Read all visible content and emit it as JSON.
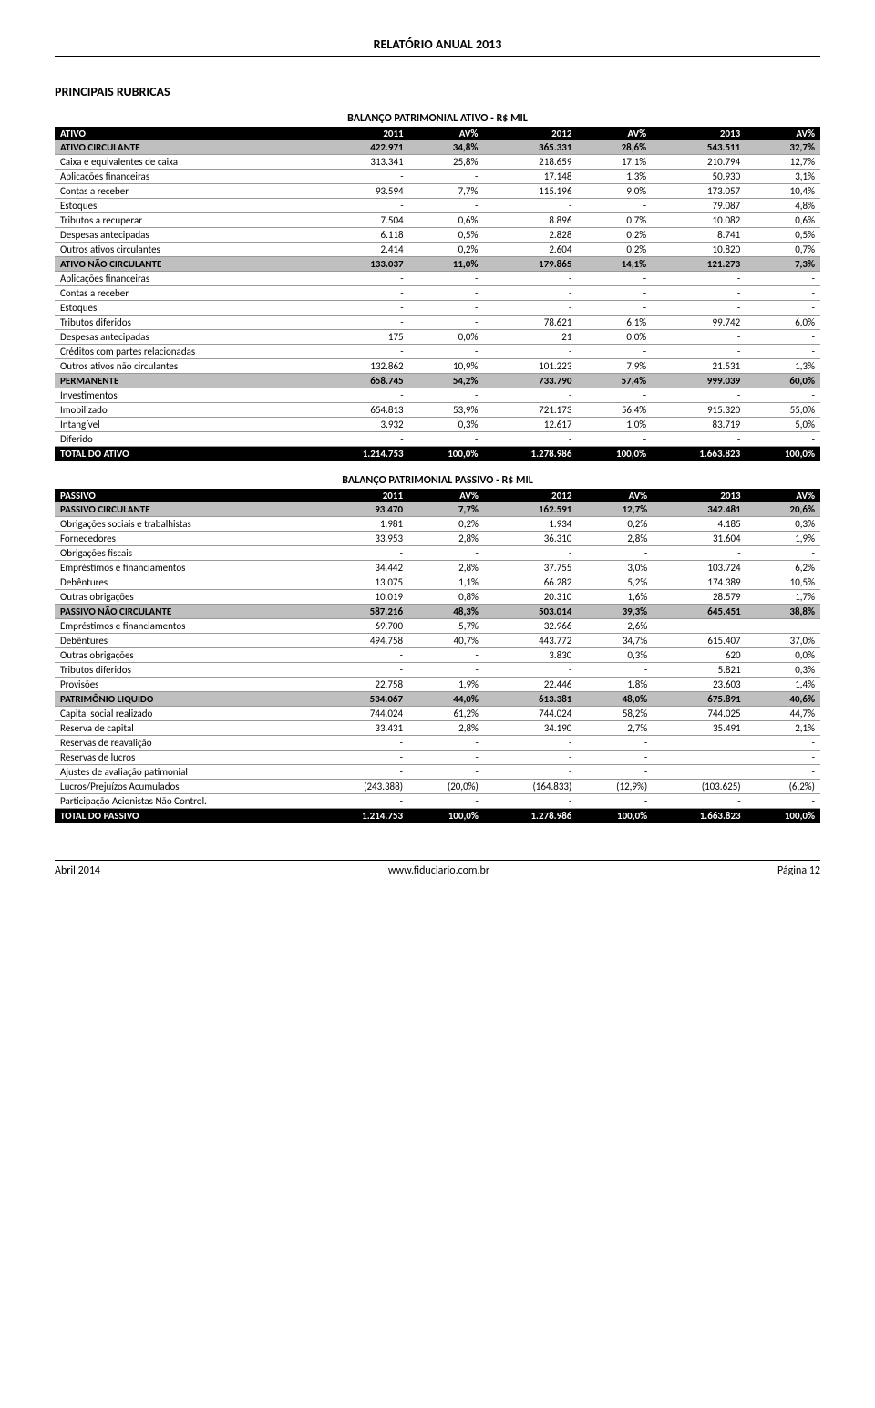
{
  "header": "RELATÓRIO ANUAL 2013",
  "section_title": "PRINCIPAIS RUBRICAS",
  "ativo": {
    "title": "BALANÇO PATRIMONIAL ATIVO - R$ MIL",
    "columns": [
      "ATIVO",
      "2011",
      "AV%",
      "2012",
      "AV%",
      "2013",
      "AV%"
    ],
    "rows": [
      {
        "style": "shaded",
        "cells": [
          "ATIVO CIRCULANTE",
          "422.971",
          "34,8%",
          "365.331",
          "28,6%",
          "543.511",
          "32,7%"
        ]
      },
      {
        "style": "",
        "cells": [
          "Caixa e equivalentes de caixa",
          "313.341",
          "25,8%",
          "218.659",
          "17,1%",
          "210.794",
          "12,7%"
        ]
      },
      {
        "style": "",
        "cells": [
          "Aplicações financeiras",
          "-",
          "-",
          "17.148",
          "1,3%",
          "50.930",
          "3,1%"
        ]
      },
      {
        "style": "",
        "cells": [
          "Contas a receber",
          "93.594",
          "7,7%",
          "115.196",
          "9,0%",
          "173.057",
          "10,4%"
        ]
      },
      {
        "style": "",
        "cells": [
          "Estoques",
          "-",
          "-",
          "-",
          "-",
          "79.087",
          "4,8%"
        ]
      },
      {
        "style": "",
        "cells": [
          "Tributos a recuperar",
          "7.504",
          "0,6%",
          "8.896",
          "0,7%",
          "10.082",
          "0,6%"
        ]
      },
      {
        "style": "",
        "cells": [
          "Despesas antecipadas",
          "6.118",
          "0,5%",
          "2.828",
          "0,2%",
          "8.741",
          "0,5%"
        ]
      },
      {
        "style": "",
        "cells": [
          "Outros ativos circulantes",
          "2.414",
          "0,2%",
          "2.604",
          "0,2%",
          "10.820",
          "0,7%"
        ]
      },
      {
        "style": "shaded",
        "cells": [
          "ATIVO NÃO CIRCULANTE",
          "133.037",
          "11,0%",
          "179.865",
          "14,1%",
          "121.273",
          "7,3%"
        ]
      },
      {
        "style": "",
        "cells": [
          "Aplicações financeiras",
          "-",
          "-",
          "-",
          "-",
          "-",
          "-"
        ]
      },
      {
        "style": "",
        "cells": [
          "Contas a receber",
          "-",
          "-",
          "-",
          "-",
          "-",
          "-"
        ]
      },
      {
        "style": "",
        "cells": [
          "Estoques",
          "-",
          "-",
          "-",
          "-",
          "-",
          "-"
        ]
      },
      {
        "style": "",
        "cells": [
          "Tributos diferidos",
          "-",
          "-",
          "78.621",
          "6,1%",
          "99.742",
          "6,0%"
        ]
      },
      {
        "style": "",
        "cells": [
          "Despesas antecipadas",
          "175",
          "0,0%",
          "21",
          "0,0%",
          "-",
          "-"
        ]
      },
      {
        "style": "",
        "cells": [
          "Créditos com partes relacionadas",
          "-",
          "-",
          "-",
          "-",
          "-",
          "-"
        ]
      },
      {
        "style": "",
        "cells": [
          "Outros ativos não circulantes",
          "132.862",
          "10,9%",
          "101.223",
          "7,9%",
          "21.531",
          "1,3%"
        ]
      },
      {
        "style": "shaded",
        "cells": [
          "PERMANENTE",
          "658.745",
          "54,2%",
          "733.790",
          "57,4%",
          "999.039",
          "60,0%"
        ]
      },
      {
        "style": "",
        "cells": [
          "Investimentos",
          "-",
          "-",
          "-",
          "-",
          "-",
          "-"
        ]
      },
      {
        "style": "",
        "cells": [
          "Imobilizado",
          "654.813",
          "53,9%",
          "721.173",
          "56,4%",
          "915.320",
          "55,0%"
        ]
      },
      {
        "style": "",
        "cells": [
          "Intangível",
          "3.932",
          "0,3%",
          "12.617",
          "1,0%",
          "83.719",
          "5,0%"
        ]
      },
      {
        "style": "",
        "cells": [
          "Diferido",
          "-",
          "-",
          "-",
          "-",
          "-",
          "-"
        ]
      },
      {
        "style": "total",
        "cells": [
          "TOTAL DO ATIVO",
          "1.214.753",
          "100,0%",
          "1.278.986",
          "100,0%",
          "1.663.823",
          "100,0%"
        ]
      }
    ]
  },
  "passivo": {
    "title": "BALANÇO PATRIMONIAL PASSIVO - R$ MIL",
    "columns": [
      "PASSIVO",
      "2011",
      "AV%",
      "2012",
      "AV%",
      "2013",
      "AV%"
    ],
    "rows": [
      {
        "style": "shaded",
        "cells": [
          "PASSIVO CIRCULANTE",
          "93.470",
          "7,7%",
          "162.591",
          "12,7%",
          "342.481",
          "20,6%"
        ]
      },
      {
        "style": "",
        "cells": [
          "Obrigações sociais e trabalhistas",
          "1.981",
          "0,2%",
          "1.934",
          "0,2%",
          "4.185",
          "0,3%"
        ]
      },
      {
        "style": "",
        "cells": [
          "Fornecedores",
          "33.953",
          "2,8%",
          "36.310",
          "2,8%",
          "31.604",
          "1,9%"
        ]
      },
      {
        "style": "",
        "cells": [
          "Obrigações fiscais",
          "-",
          "-",
          "-",
          "-",
          "-",
          "-"
        ]
      },
      {
        "style": "",
        "cells": [
          "Empréstimos e financiamentos",
          "34.442",
          "2,8%",
          "37.755",
          "3,0%",
          "103.724",
          "6,2%"
        ]
      },
      {
        "style": "",
        "cells": [
          "Debêntures",
          "13.075",
          "1,1%",
          "66.282",
          "5,2%",
          "174.389",
          "10,5%"
        ]
      },
      {
        "style": "",
        "cells": [
          "Outras obrigações",
          "10.019",
          "0,8%",
          "20.310",
          "1,6%",
          "28.579",
          "1,7%"
        ]
      },
      {
        "style": "shaded",
        "cells": [
          "PASSIVO NÃO CIRCULANTE",
          "587.216",
          "48,3%",
          "503.014",
          "39,3%",
          "645.451",
          "38,8%"
        ]
      },
      {
        "style": "",
        "cells": [
          "Empréstimos e financiamentos",
          "69.700",
          "5,7%",
          "32.966",
          "2,6%",
          "-",
          "-"
        ]
      },
      {
        "style": "",
        "cells": [
          "Debêntures",
          "494.758",
          "40,7%",
          "443.772",
          "34,7%",
          "615.407",
          "37,0%"
        ]
      },
      {
        "style": "",
        "cells": [
          "Outras obrigações",
          "-",
          "-",
          "3.830",
          "0,3%",
          "620",
          "0,0%"
        ]
      },
      {
        "style": "",
        "cells": [
          "Tributos diferidos",
          "-",
          "-",
          "-",
          "-",
          "5.821",
          "0,3%"
        ]
      },
      {
        "style": "",
        "cells": [
          "Provisões",
          "22.758",
          "1,9%",
          "22.446",
          "1,8%",
          "23.603",
          "1,4%"
        ]
      },
      {
        "style": "shaded",
        "cells": [
          "PATRIMÔNIO LIQUIDO",
          "534.067",
          "44,0%",
          "613.381",
          "48,0%",
          "675.891",
          "40,6%"
        ]
      },
      {
        "style": "",
        "cells": [
          "Capital social realizado",
          "744.024",
          "61,2%",
          "744.024",
          "58,2%",
          "744.025",
          "44,7%"
        ]
      },
      {
        "style": "",
        "cells": [
          "Reserva de capital",
          "33.431",
          "2,8%",
          "34.190",
          "2,7%",
          "35.491",
          "2,1%"
        ]
      },
      {
        "style": "",
        "cells": [
          "Reservas de reavalição",
          "-",
          "-",
          "-",
          "-",
          "",
          "-"
        ]
      },
      {
        "style": "",
        "cells": [
          "Reservas de lucros",
          "-",
          "-",
          "-",
          "-",
          "",
          "-"
        ]
      },
      {
        "style": "",
        "cells": [
          "Ajustes de avaliação patimonial",
          "-",
          "-",
          "-",
          "-",
          "",
          "-"
        ]
      },
      {
        "style": "",
        "cells": [
          "Lucros/Prejuízos Acumulados",
          "(243.388)",
          "(20,0%)",
          "(164.833)",
          "(12,9%)",
          "(103.625)",
          "(6,2%)"
        ]
      },
      {
        "style": "",
        "cells": [
          "Participação Acionistas Não Control.",
          "-",
          "-",
          "-",
          "-",
          "-",
          "-"
        ]
      },
      {
        "style": "total",
        "cells": [
          "TOTAL DO PASSIVO",
          "1.214.753",
          "100,0%",
          "1.278.986",
          "100,0%",
          "1.663.823",
          "100,0%"
        ]
      }
    ]
  },
  "footer": {
    "left": "Abril 2014",
    "center": "www.fiduciario.com.br",
    "right": "Página 12"
  }
}
